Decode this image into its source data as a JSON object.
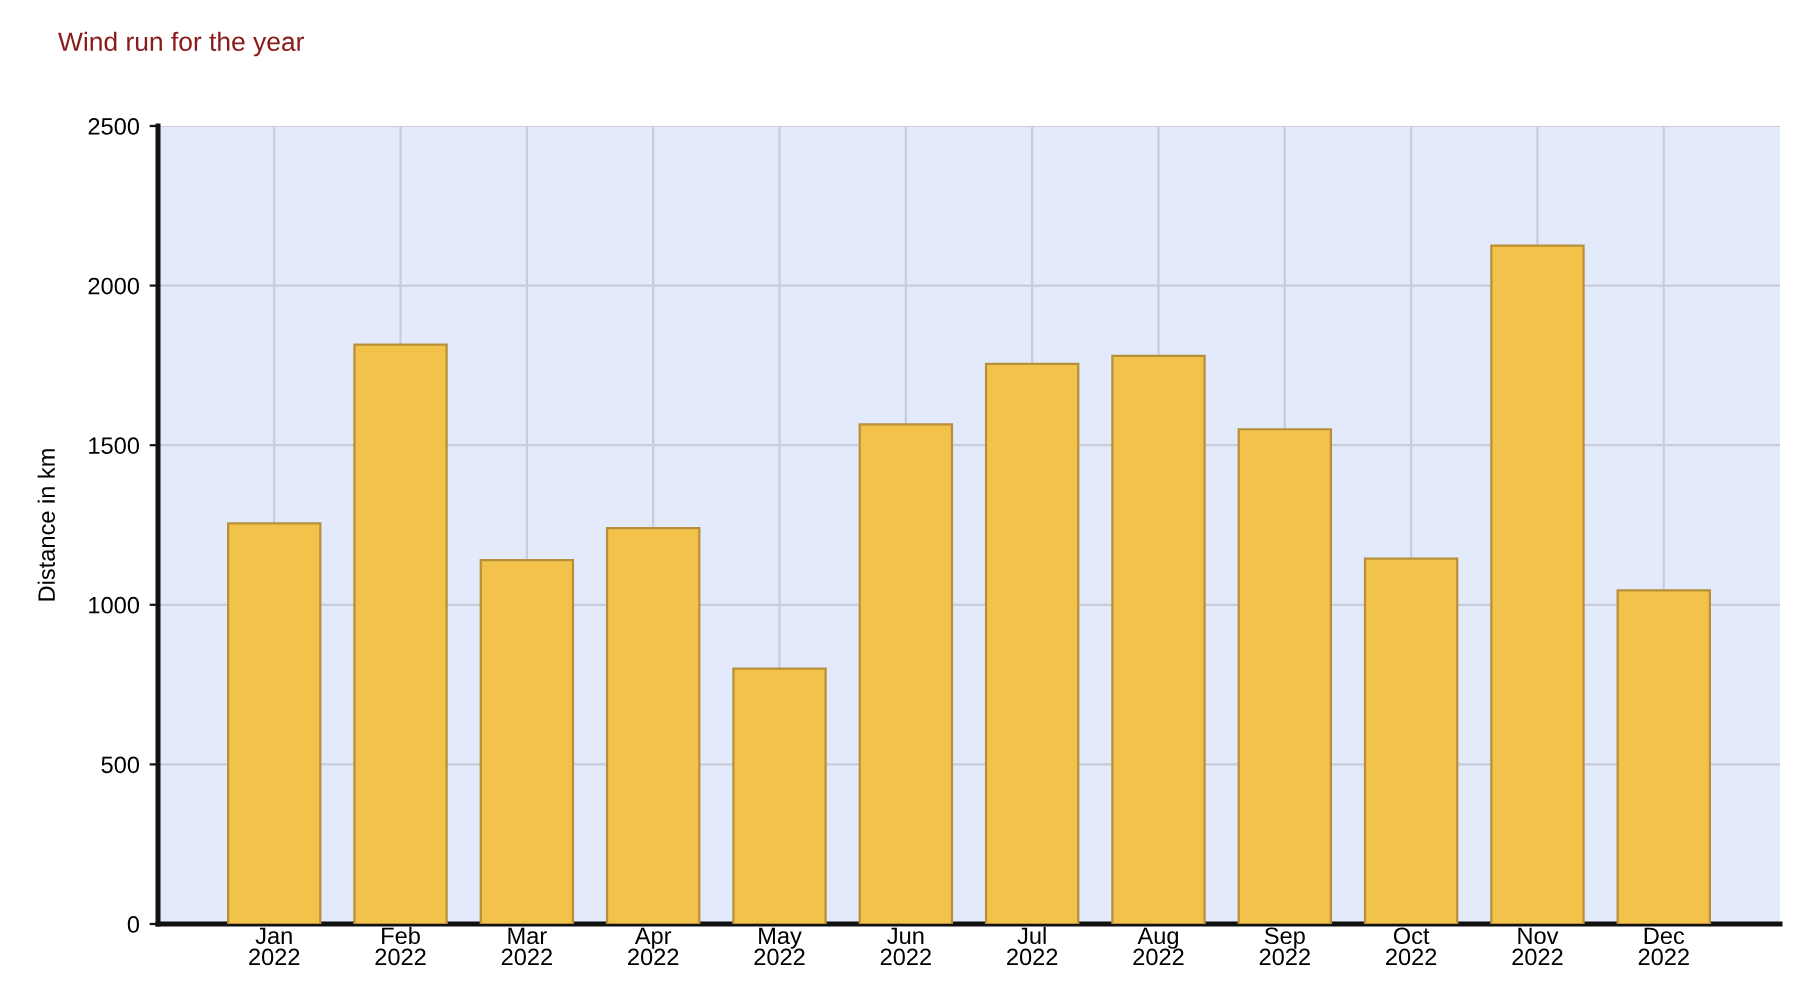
{
  "chart_data": {
    "type": "bar",
    "title": "Wind run for the year",
    "ylabel": "Distance in km",
    "categories": [
      "Jan\n2022",
      "Feb\n2022",
      "Mar\n2022",
      "Apr\n2022",
      "May\n2022",
      "Jun\n2022",
      "Jul\n2022",
      "Aug\n2022",
      "Sep\n2022",
      "Oct\n2022",
      "Nov\n2022",
      "Dec\n2022"
    ],
    "values": [
      1255,
      1815,
      1140,
      1240,
      800,
      1565,
      1755,
      1780,
      1550,
      1145,
      2125,
      1045
    ],
    "color": "#f2c24a",
    "ylim": [
      0,
      2500
    ],
    "yticks": [
      0,
      500,
      1000,
      1500,
      2000,
      2500
    ],
    "grid": true
  }
}
